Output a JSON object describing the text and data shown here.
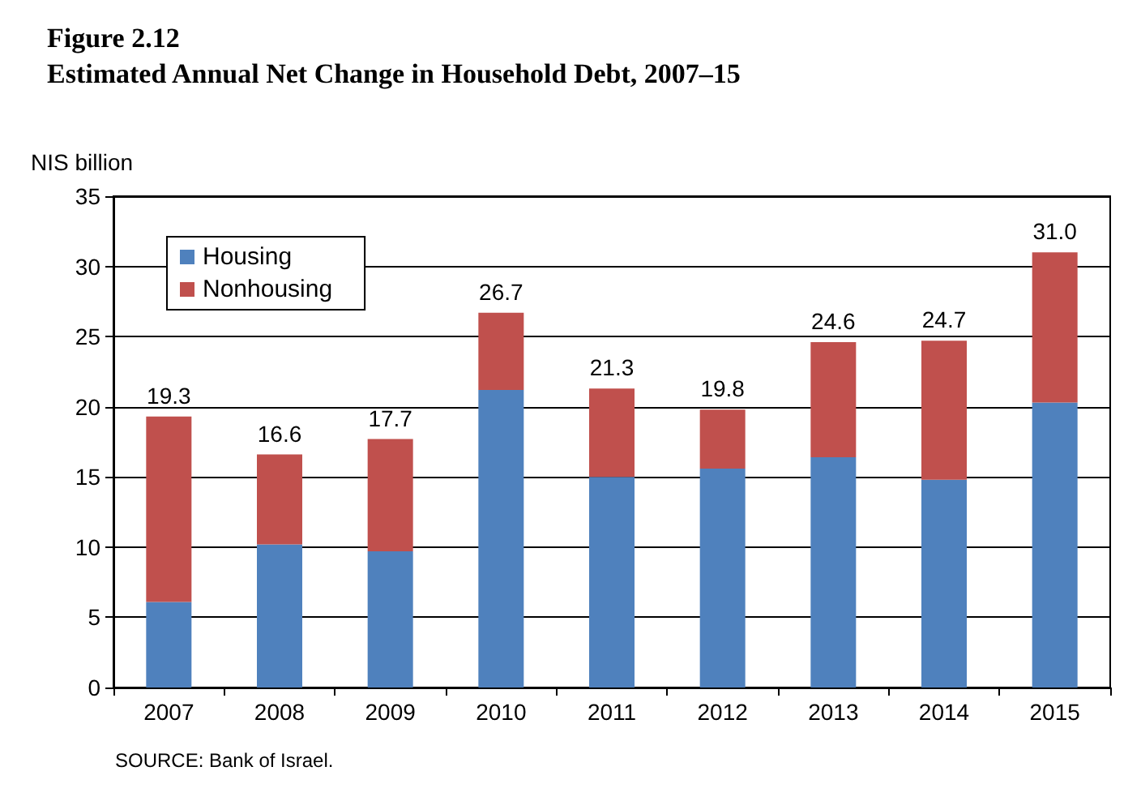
{
  "chart_data": {
    "type": "bar",
    "stacked": true,
    "title": "Figure 2.12",
    "subtitle": "Estimated Annual Net Change in Household Debt, 2007–15",
    "ylabel": "NIS billion",
    "categories": [
      "2007",
      "2008",
      "2009",
      "2010",
      "2011",
      "2012",
      "2013",
      "2014",
      "2015"
    ],
    "series": [
      {
        "name": "Housing",
        "color": "#4f81bd",
        "values": [
          6.1,
          10.2,
          9.7,
          21.2,
          15.0,
          15.6,
          16.4,
          14.8,
          20.3
        ]
      },
      {
        "name": "Nonhousing",
        "color": "#c0504d",
        "values": [
          13.2,
          6.4,
          8.0,
          5.5,
          6.3,
          4.2,
          8.2,
          9.9,
          10.7
        ]
      }
    ],
    "totals": [
      "19.3",
      "16.6",
      "17.7",
      "26.7",
      "21.3",
      "19.8",
      "24.6",
      "24.7",
      "31.0"
    ],
    "ylim": [
      0,
      35
    ],
    "yticks": [
      0,
      5,
      10,
      15,
      20,
      25,
      30,
      35
    ],
    "grid": "y",
    "legend": "top left",
    "annotations": [
      "SOURCE: Bank of Israel."
    ]
  }
}
